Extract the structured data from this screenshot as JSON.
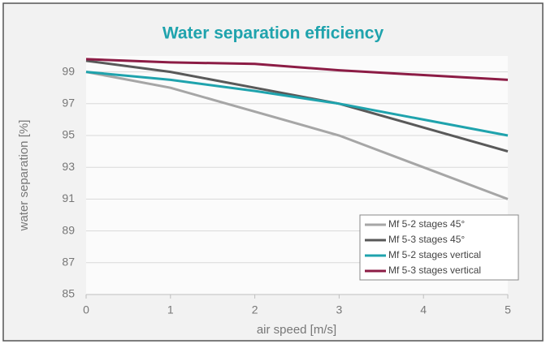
{
  "chart_data": {
    "type": "line",
    "title": "Water separation efficiency",
    "x_label": "air speed [m/s]",
    "y_label": "water separation [%]",
    "x": [
      0,
      1,
      2,
      3,
      4,
      5
    ],
    "xlim": [
      0,
      5
    ],
    "xticks": [
      0,
      1,
      2,
      3,
      4,
      5
    ],
    "ylim": [
      85,
      100
    ],
    "yticks": [
      85,
      87,
      89,
      91,
      93,
      95,
      97,
      99
    ],
    "grid": true,
    "legend": "lower right",
    "series": [
      {
        "name": "Mf 5-2 stages 45°",
        "color": "#a6a6a6",
        "values": [
          99,
          98,
          96.5,
          95,
          93,
          91
        ]
      },
      {
        "name": "Mf 5-3 stages 45°",
        "color": "#595959",
        "values": [
          99.7,
          99,
          98,
          97,
          95.5,
          94
        ]
      },
      {
        "name": "Mf 5-2 stages vertical",
        "color": "#1fa3ad",
        "values": [
          99,
          98.5,
          97.8,
          97,
          96,
          95
        ]
      },
      {
        "name": "Mf 5-3 stages vertical",
        "color": "#8c1c45",
        "values": [
          99.8,
          99.6,
          99.5,
          99.1,
          98.8,
          98.5
        ]
      }
    ]
  }
}
